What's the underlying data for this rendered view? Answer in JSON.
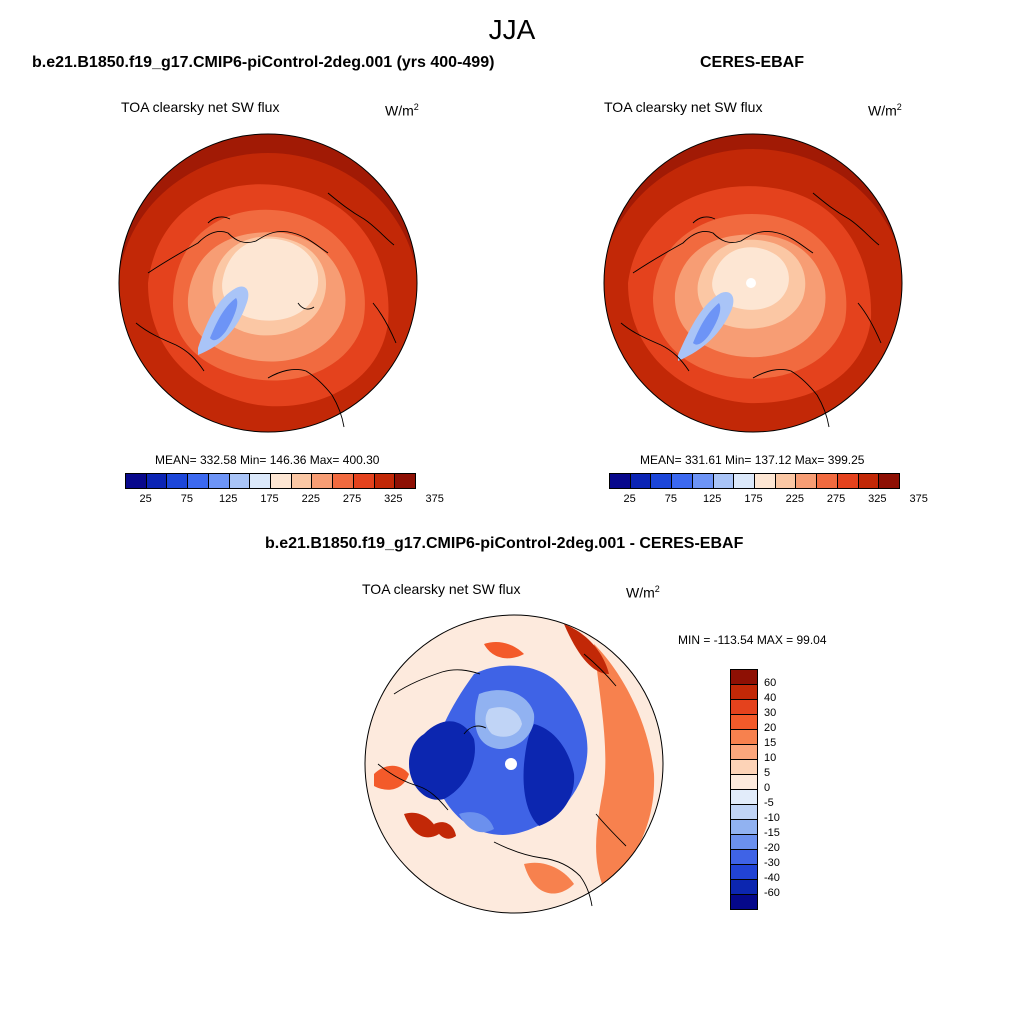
{
  "season": "JJA",
  "panels": {
    "model": {
      "title": "b.e21.B1850.f19_g17.CMIP6-piControl-2deg.001 (yrs 400-499)",
      "subtitle": "TOA clearsky net SW flux",
      "units": "W/m",
      "units_exp": "2",
      "stats": "MEAN= 332.58  Min= 146.36  Max= 400.30"
    },
    "obs": {
      "title": "CERES-EBAF",
      "subtitle": "TOA clearsky net SW flux",
      "units": "W/m",
      "units_exp": "2",
      "stats": "MEAN= 331.61  Min= 137.12  Max= 399.25"
    },
    "diff": {
      "title": "b.e21.B1850.f19_g17.CMIP6-piControl-2deg.001 - CERES-EBAF",
      "subtitle": "TOA clearsky net SW flux",
      "units": "W/m",
      "units_exp": "2",
      "stats": "MIN = -113.54 MAX =  99.04"
    }
  },
  "colorbar_abs": {
    "colors": [
      "#08088c",
      "#0b24b4",
      "#1c46d9",
      "#3c69f0",
      "#6d94f6",
      "#a9c4f7",
      "#dbe8fa",
      "#fde6d3",
      "#fbc7a4",
      "#f79d74",
      "#f16a3f",
      "#e4421d",
      "#c22807",
      "#8e1004"
    ],
    "labels": [
      "25",
      "75",
      "125",
      "175",
      "225",
      "275",
      "325",
      "375"
    ]
  },
  "colorbar_diff": {
    "colors": [
      "#8e1004",
      "#c22807",
      "#e4421d",
      "#f35a2a",
      "#f7814e",
      "#fba67c",
      "#fdd3b7",
      "#fdeadd",
      "#e2ecfa",
      "#c0d4f6",
      "#91b2f1",
      "#6b90ee",
      "#3f63e6",
      "#2143d5",
      "#0c26b0",
      "#05088a"
    ],
    "labels": [
      "60",
      "40",
      "30",
      "20",
      "15",
      "10",
      "5",
      "0",
      "-5",
      "-10",
      "-15",
      "-20",
      "-30",
      "-40",
      "-60"
    ]
  }
}
